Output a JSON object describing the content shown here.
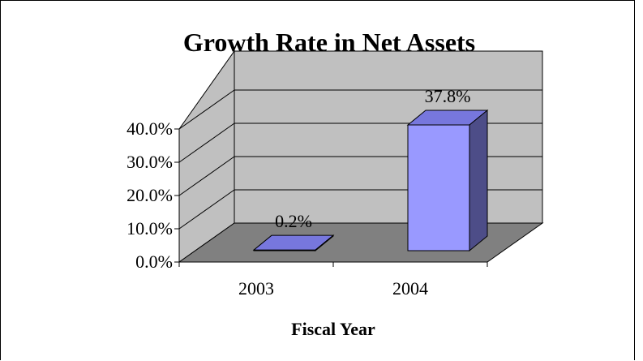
{
  "chart_data": {
    "type": "bar",
    "title": "Growth Rate in Net Assets",
    "xlabel": "Fiscal Year",
    "ylabel": "",
    "categories": [
      "2003",
      "2004"
    ],
    "values": [
      0.2,
      37.8
    ],
    "data_labels": [
      "0.2%",
      "37.8%"
    ],
    "y_ticks": [
      "0.0%",
      "10.0%",
      "20.0%",
      "30.0%",
      "40.0%"
    ],
    "ylim": [
      0,
      40
    ],
    "grid": true,
    "three_d": true,
    "colors": {
      "bar_front": "#9999ff",
      "bar_top": "#7777dd",
      "bar_side": "#4d4d88",
      "wall_back": "#c0c0c0",
      "wall_side": "#c0c0c0",
      "floor": "#808080"
    }
  }
}
